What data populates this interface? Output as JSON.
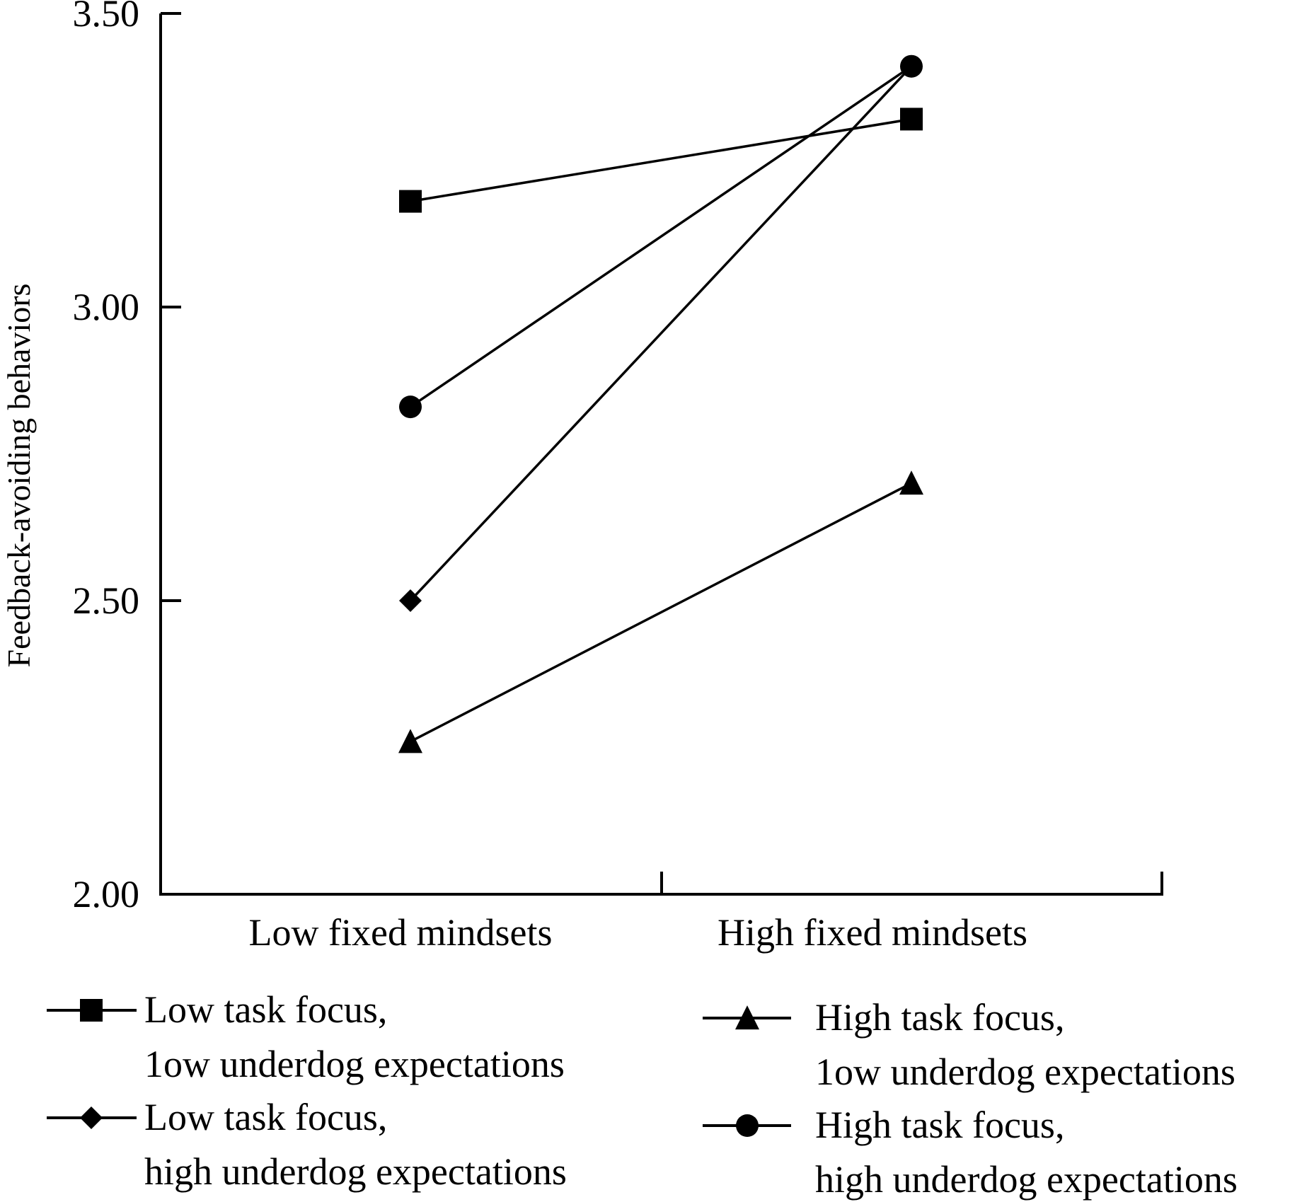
{
  "chart_data": {
    "type": "line",
    "title": "",
    "xlabel": "",
    "ylabel": "Feedback-avoiding behaviors",
    "ylim": [
      2.0,
      3.5
    ],
    "yticks": [
      "2.00",
      "2.50",
      "3.00",
      "3.50"
    ],
    "ytick_values": [
      2.0,
      2.5,
      3.0,
      3.5
    ],
    "categories": [
      "Low fixed mindsets",
      "High fixed mindsets"
    ],
    "grid": false,
    "legend_position": "bottom",
    "series": [
      {
        "name": "Low task focus,\n1ow underdog expectations",
        "lines": [
          "Low task focus,",
          "1ow underdog expectations"
        ],
        "marker": "square",
        "values": [
          3.18,
          3.32
        ]
      },
      {
        "name": "Low task focus,\nhigh underdog expectations",
        "lines": [
          "Low task focus,",
          "high underdog expectations"
        ],
        "marker": "diamond",
        "values": [
          2.5,
          3.41
        ]
      },
      {
        "name": "High task focus,\n1ow underdog expectations",
        "lines": [
          "High task focus,",
          "1ow underdog expectations"
        ],
        "marker": "triangle",
        "values": [
          2.26,
          2.7
        ]
      },
      {
        "name": "High task focus,\nhigh underdog expectations",
        "lines": [
          "High task focus,",
          "high underdog expectations"
        ],
        "marker": "circle",
        "values": [
          2.83,
          3.41
        ]
      }
    ],
    "colors": {
      "line": "#000000",
      "marker": "#000000",
      "background": "#ffffff"
    }
  }
}
